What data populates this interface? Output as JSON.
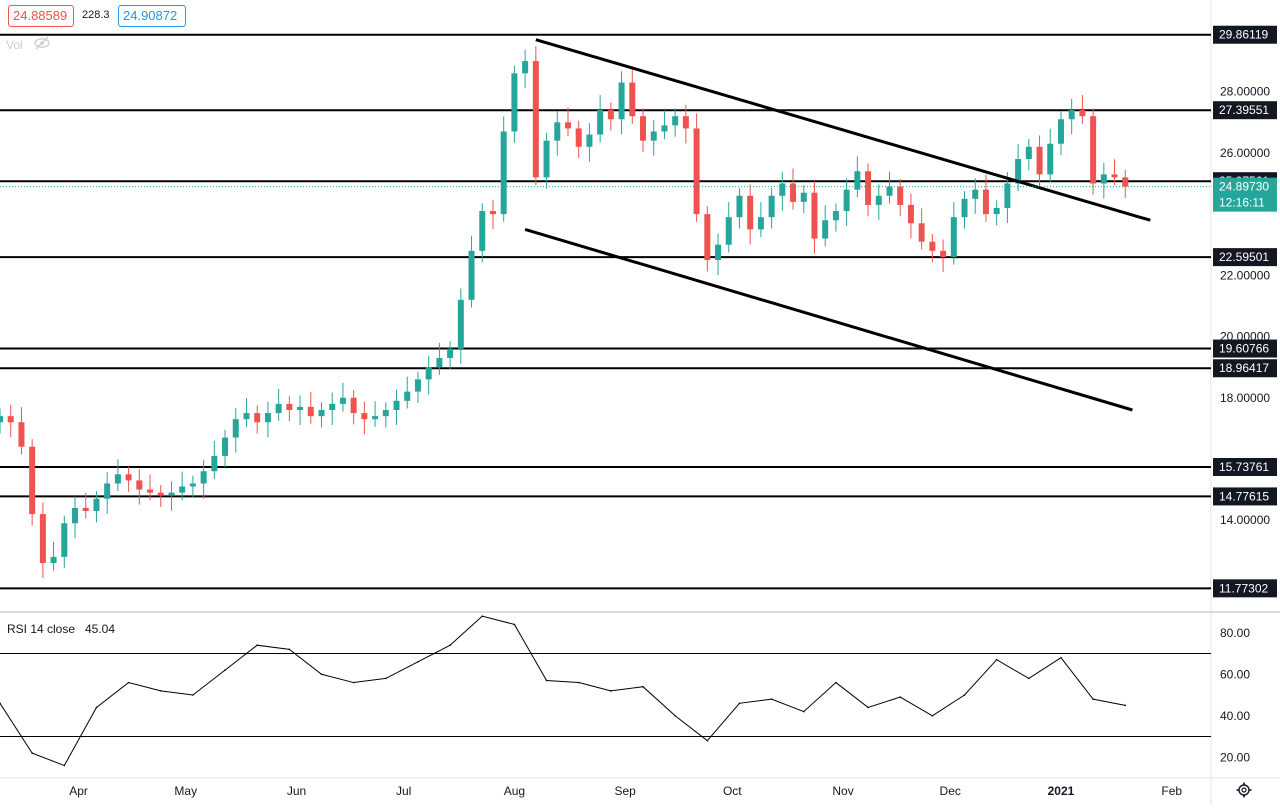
{
  "header": {
    "open_value": "24.88589",
    "volume_value": "228.3",
    "close_value": "24.90872",
    "vol_label": "Vol"
  },
  "price_axis": {
    "ticks": [
      "28.00000",
      "26.00000",
      "22.00000",
      "20.00000",
      "18.00000",
      "14.00000"
    ],
    "last_price": "24.89730",
    "countdown": "12:16:11"
  },
  "horizontal_levels": [
    "29.86119",
    "27.39551",
    "25.07561",
    "22.59501",
    "19.60766",
    "18.96417",
    "15.73761",
    "14.77615",
    "11.77302"
  ],
  "time_axis": [
    "Apr",
    "May",
    "Jun",
    "Jul",
    "Aug",
    "Sep",
    "Oct",
    "Nov",
    "Dec",
    "2021",
    "Feb"
  ],
  "rsi": {
    "label": "RSI 14 close",
    "value": "45.04",
    "ticks": [
      "80.00",
      "60.00",
      "40.00",
      "20.00"
    ]
  },
  "colors": {
    "up": "#26a69a",
    "down": "#ef5350",
    "level": "#000000",
    "rsi_line": "#000000",
    "axis_text": "#131722",
    "price_tag": "#26a69a"
  },
  "chart_data": {
    "type": "candlestick",
    "price_range": [
      11.0,
      30.8
    ],
    "rsi_range": [
      10,
      90
    ],
    "x_domain": [
      "2020-03-10",
      "2021-02-12"
    ],
    "horizontal_levels": [
      29.86119,
      27.39551,
      25.07561,
      22.59501,
      19.60766,
      18.96417,
      15.73761,
      14.77615,
      11.77302
    ],
    "trendlines": [
      {
        "from": [
          "2020-08-07",
          29.7
        ],
        "to": [
          "2021-01-26",
          23.8
        ]
      },
      {
        "from": [
          "2020-08-04",
          23.5
        ],
        "to": [
          "2021-01-21",
          17.6
        ]
      }
    ],
    "series": [
      {
        "name": "Close",
        "x": [
          "2020-03-10",
          "2020-03-13",
          "2020-03-16",
          "2020-03-19",
          "2020-03-22",
          "2020-03-25",
          "2020-03-28",
          "2020-03-31",
          "2020-04-03",
          "2020-04-06",
          "2020-04-09",
          "2020-04-12",
          "2020-04-15",
          "2020-04-18",
          "2020-04-21",
          "2020-04-24",
          "2020-04-27",
          "2020-04-30",
          "2020-05-03",
          "2020-05-06",
          "2020-05-09",
          "2020-05-12",
          "2020-05-15",
          "2020-05-18",
          "2020-05-21",
          "2020-05-24",
          "2020-05-27",
          "2020-05-30",
          "2020-06-02",
          "2020-06-05",
          "2020-06-08",
          "2020-06-11",
          "2020-06-14",
          "2020-06-17",
          "2020-06-20",
          "2020-06-23",
          "2020-06-26",
          "2020-06-29",
          "2020-07-02",
          "2020-07-05",
          "2020-07-08",
          "2020-07-11",
          "2020-07-14",
          "2020-07-17",
          "2020-07-20",
          "2020-07-23",
          "2020-07-26",
          "2020-07-29",
          "2020-08-01",
          "2020-08-04",
          "2020-08-07",
          "2020-08-10",
          "2020-08-13",
          "2020-08-16",
          "2020-08-19",
          "2020-08-22",
          "2020-08-25",
          "2020-08-28",
          "2020-08-31",
          "2020-09-03",
          "2020-09-06",
          "2020-09-09",
          "2020-09-12",
          "2020-09-15",
          "2020-09-18",
          "2020-09-21",
          "2020-09-24",
          "2020-09-27",
          "2020-09-30",
          "2020-10-03",
          "2020-10-06",
          "2020-10-09",
          "2020-10-12",
          "2020-10-15",
          "2020-10-18",
          "2020-10-21",
          "2020-10-24",
          "2020-10-27",
          "2020-10-30",
          "2020-11-02",
          "2020-11-05",
          "2020-11-08",
          "2020-11-11",
          "2020-11-14",
          "2020-11-17",
          "2020-11-20",
          "2020-11-23",
          "2020-11-26",
          "2020-11-29",
          "2020-12-02",
          "2020-12-05",
          "2020-12-08",
          "2020-12-11",
          "2020-12-14",
          "2020-12-17",
          "2020-12-20",
          "2020-12-23",
          "2020-12-26",
          "2020-12-29",
          "2021-01-01",
          "2021-01-04",
          "2021-01-07",
          "2021-01-10",
          "2021-01-13",
          "2021-01-16",
          "2021-01-19"
        ],
        "values": [
          17.4,
          17.2,
          16.4,
          14.2,
          12.6,
          12.8,
          13.9,
          14.4,
          14.3,
          14.7,
          15.2,
          15.5,
          15.3,
          15.0,
          14.9,
          14.8,
          14.9,
          15.1,
          15.2,
          15.6,
          16.1,
          16.7,
          17.3,
          17.5,
          17.2,
          17.5,
          17.8,
          17.6,
          17.7,
          17.4,
          17.6,
          17.8,
          18.0,
          17.5,
          17.3,
          17.4,
          17.6,
          17.9,
          18.2,
          18.6,
          19.0,
          19.3,
          19.6,
          21.2,
          22.8,
          24.1,
          24.0,
          26.7,
          28.6,
          29.0,
          25.2,
          26.4,
          27.0,
          26.8,
          26.2,
          26.6,
          27.4,
          27.1,
          28.3,
          27.2,
          26.4,
          26.7,
          26.9,
          27.2,
          26.8,
          24.0,
          22.5,
          23.0,
          23.9,
          24.6,
          23.5,
          23.9,
          24.6,
          25.0,
          24.4,
          24.7,
          23.2,
          23.8,
          24.1,
          24.8,
          25.4,
          24.3,
          24.6,
          24.9,
          24.3,
          23.7,
          23.1,
          22.8,
          22.6,
          23.9,
          24.5,
          24.8,
          24.0,
          24.2,
          25.0,
          25.8,
          26.2,
          25.3,
          26.3,
          27.1,
          27.4,
          27.2,
          25.0,
          25.3,
          25.2,
          24.9
        ]
      },
      {
        "name": "RSI",
        "x": [
          "2020-03-10",
          "2020-03-19",
          "2020-03-28",
          "2020-04-06",
          "2020-04-15",
          "2020-04-24",
          "2020-05-03",
          "2020-05-12",
          "2020-05-21",
          "2020-05-30",
          "2020-06-08",
          "2020-06-17",
          "2020-06-26",
          "2020-07-05",
          "2020-07-14",
          "2020-07-23",
          "2020-08-01",
          "2020-08-10",
          "2020-08-19",
          "2020-08-28",
          "2020-09-06",
          "2020-09-15",
          "2020-09-24",
          "2020-10-03",
          "2020-10-12",
          "2020-10-21",
          "2020-10-30",
          "2020-11-08",
          "2020-11-17",
          "2020-11-26",
          "2020-12-05",
          "2020-12-14",
          "2020-12-23",
          "2021-01-01",
          "2021-01-10",
          "2021-01-19"
        ],
        "values": [
          46,
          22,
          16,
          44,
          56,
          52,
          50,
          62,
          74,
          72,
          60,
          56,
          58,
          66,
          74,
          88,
          84,
          57,
          56,
          52,
          54,
          40,
          28,
          46,
          48,
          42,
          56,
          44,
          49,
          40,
          50,
          67,
          58,
          68,
          48,
          45
        ]
      }
    ]
  }
}
